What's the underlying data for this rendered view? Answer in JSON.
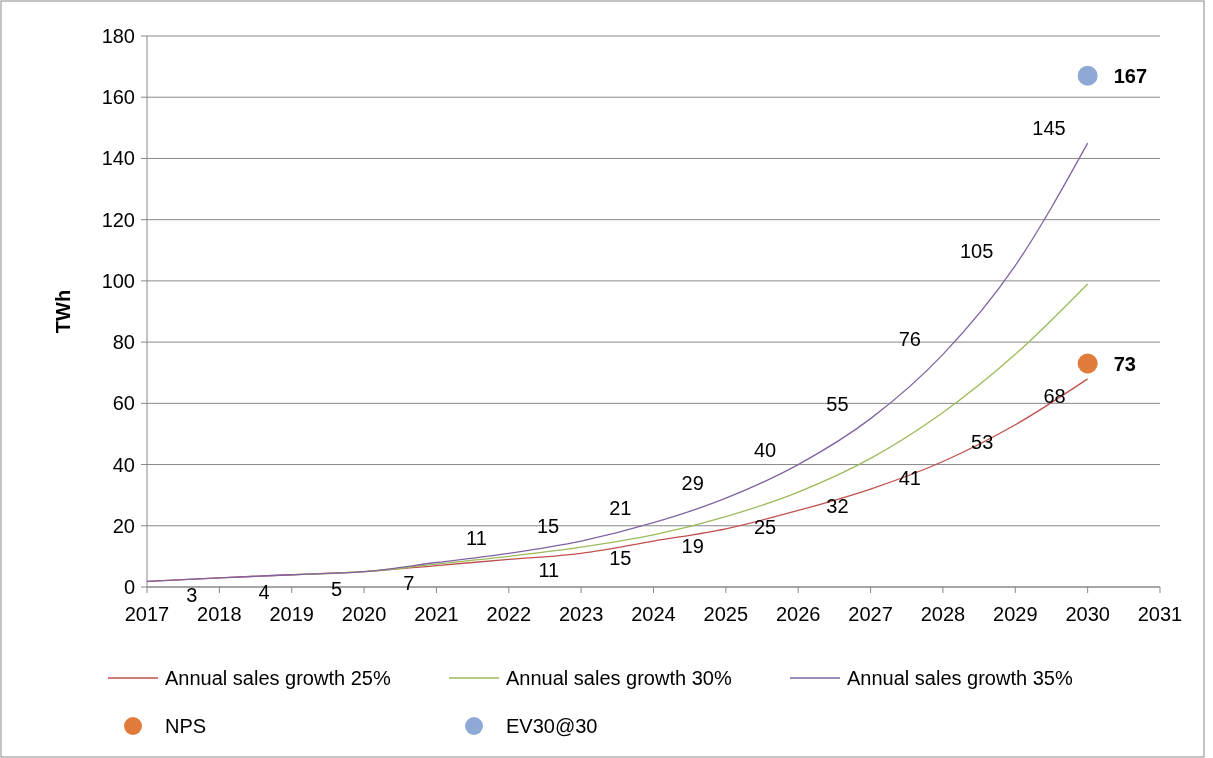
{
  "chart_data": {
    "type": "line",
    "ylabel": "TWh",
    "x": [
      2017,
      2018,
      2019,
      2020,
      2021,
      2022,
      2023,
      2024,
      2025,
      2026,
      2027,
      2028,
      2029,
      2030
    ],
    "xlim": [
      2017,
      2031
    ],
    "xticks": [
      2017,
      2018,
      2019,
      2020,
      2021,
      2022,
      2023,
      2024,
      2025,
      2026,
      2027,
      2028,
      2029,
      2030,
      2031
    ],
    "ylim": [
      0,
      180
    ],
    "yticks": [
      0,
      20,
      40,
      60,
      80,
      100,
      120,
      140,
      160,
      180
    ],
    "grid": "y",
    "legend": "bottom",
    "marker": "none",
    "line_style": "solid",
    "series": [
      {
        "name": "Annual sales growth 25%",
        "color": "#c0504d",
        "values": [
          1.8,
          3,
          4,
          5,
          7,
          9,
          11,
          15,
          19,
          25,
          32,
          41,
          53,
          68
        ],
        "value_labels": [
          null,
          "3",
          "4",
          "5",
          "7",
          null,
          "11",
          "15",
          "19",
          "25",
          "32",
          "41",
          "53",
          "68"
        ]
      },
      {
        "name": "Annual sales growth 30%",
        "color": "#9bbb59",
        "values": [
          null,
          null,
          4,
          5,
          7.5,
          10,
          13,
          17,
          23,
          31,
          42,
          57,
          76,
          99
        ]
      },
      {
        "name": "Annual sales growth 35%",
        "color": "#8064a2",
        "values": [
          1.8,
          3,
          4,
          5,
          8,
          11,
          15,
          21,
          29,
          40,
          55,
          76,
          105,
          145
        ],
        "value_labels": [
          null,
          null,
          null,
          null,
          null,
          "11",
          "15",
          "21",
          "29",
          "40",
          "55",
          "76",
          "105",
          "145"
        ]
      },
      {
        "name": "NPS",
        "type": "scatter",
        "marker": "circle",
        "color": "#e07b39",
        "x": [
          2030
        ],
        "values": [
          73
        ],
        "value_labels": [
          "73"
        ]
      },
      {
        "name": "EV30@30",
        "type": "scatter",
        "marker": "circle",
        "color": "#8fa9d6",
        "x": [
          2030
        ],
        "values": [
          167
        ],
        "value_labels": [
          "167"
        ]
      }
    ]
  }
}
